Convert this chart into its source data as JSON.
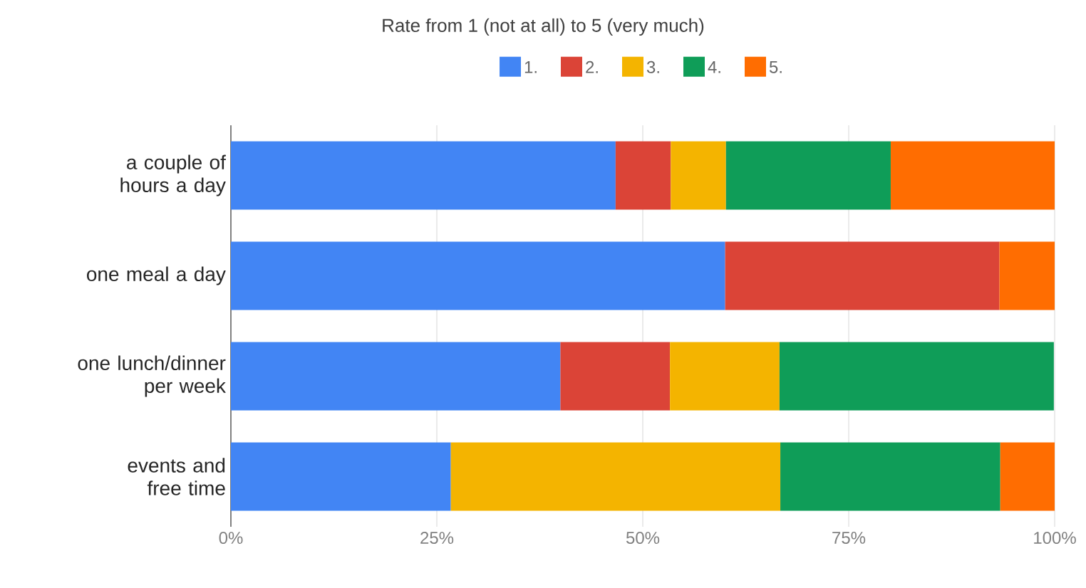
{
  "chart_data": {
    "type": "bar",
    "orientation": "horizontal",
    "stacked": true,
    "title": "Rate from 1 (not at all) to 5 (very much)",
    "categories": [
      "a couple of hours a day",
      "one meal a day",
      "one lunch/dinner per week",
      "events and free time"
    ],
    "series": [
      {
        "name": "1.",
        "color": "#4285f4",
        "values": [
          46.7,
          60,
          40,
          26.7
        ]
      },
      {
        "name": "2.",
        "color": "#db4437",
        "values": [
          6.7,
          33.3,
          13.3,
          null
        ]
      },
      {
        "name": "3.",
        "color": "#f4b400",
        "values": [
          6.7,
          null,
          13.3,
          40
        ]
      },
      {
        "name": "4.",
        "color": "#0f9d58",
        "values": [
          20,
          null,
          33.3,
          26.7
        ]
      },
      {
        "name": "5.",
        "color": "#ff6d01",
        "values": [
          20,
          6.7,
          null,
          6.7
        ]
      }
    ],
    "xlim": [
      0,
      100
    ],
    "xticks": [
      {
        "value": 0,
        "label": "0%"
      },
      {
        "value": 25,
        "label": "25%"
      },
      {
        "value": 50,
        "label": "50%"
      },
      {
        "value": 75,
        "label": "75%"
      },
      {
        "value": 100,
        "label": "100%"
      }
    ],
    "grid": "x",
    "legend": "top"
  }
}
